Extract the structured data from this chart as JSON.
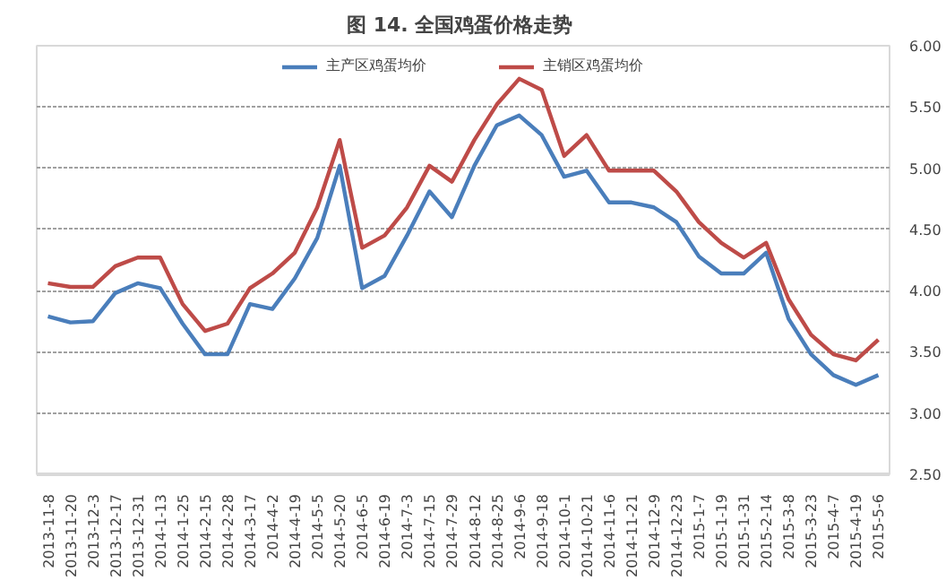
{
  "chart_data": {
    "type": "line",
    "title": "图 14.  全国鸡蛋价格走势",
    "categories": [
      "2013-11-8",
      "2013-11-20",
      "2013-12-3",
      "2013-12-17",
      "2013-12-31",
      "2014-1-13",
      "2014-1-25",
      "2014-2-15",
      "2014-2-28",
      "2014-3-17",
      "2014-4-2",
      "2014-4-19",
      "2014-5-5",
      "2014-5-20",
      "2014-6-5",
      "2014-6-19",
      "2014-7-3",
      "2014-7-15",
      "2014-7-29",
      "2014-8-12",
      "2014-8-25",
      "2014-9-6",
      "2014-9-18",
      "2014-10-1",
      "2014-10-21",
      "2014-11-6",
      "2014-11-21",
      "2014-12-9",
      "2014-12-23",
      "2015-1-7",
      "2015-1-19",
      "2015-1-31",
      "2015-2-14",
      "2015-3-8",
      "2015-3-23",
      "2015-4-7",
      "2015-4-19",
      "2015-5-6"
    ],
    "series": [
      {
        "name": "主产区鸡蛋均价",
        "color": "#4a7ebb",
        "values": [
          3.79,
          3.74,
          3.75,
          3.98,
          4.06,
          4.02,
          3.73,
          3.48,
          3.48,
          3.89,
          3.85,
          4.1,
          4.43,
          5.02,
          4.02,
          4.12,
          4.45,
          4.81,
          4.6,
          5.02,
          5.35,
          5.43,
          5.27,
          4.93,
          4.98,
          4.72,
          4.72,
          4.68,
          4.56,
          4.28,
          4.14,
          4.14,
          4.31,
          3.77,
          3.48,
          3.31,
          3.23,
          3.31
        ]
      },
      {
        "name": "主销区鸡蛋均价",
        "color": "#be4b48",
        "values": [
          4.06,
          4.03,
          4.03,
          4.2,
          4.27,
          4.27,
          3.89,
          3.67,
          3.73,
          4.02,
          4.14,
          4.31,
          4.68,
          5.23,
          4.35,
          4.45,
          4.68,
          5.02,
          4.89,
          5.23,
          5.52,
          5.73,
          5.64,
          5.1,
          5.27,
          4.98,
          4.98,
          4.98,
          4.81,
          4.56,
          4.39,
          4.27,
          4.39,
          3.93,
          3.64,
          3.48,
          3.43,
          3.6
        ]
      }
    ],
    "ylim": [
      2.5,
      6.0
    ],
    "yticks": [
      {
        "value": 2.5,
        "label": "2.50"
      },
      {
        "value": 3,
        "label": "3.00"
      },
      {
        "value": 3.5,
        "label": "3.50"
      },
      {
        "value": 4,
        "label": "4.00"
      },
      {
        "value": 4.5,
        "label": "4.50"
      },
      {
        "value": 5,
        "label": "5.00"
      },
      {
        "value": 5.5,
        "label": "5.50"
      },
      {
        "value": 6,
        "label": "6.00"
      }
    ],
    "grid": "y",
    "legend": "top"
  }
}
